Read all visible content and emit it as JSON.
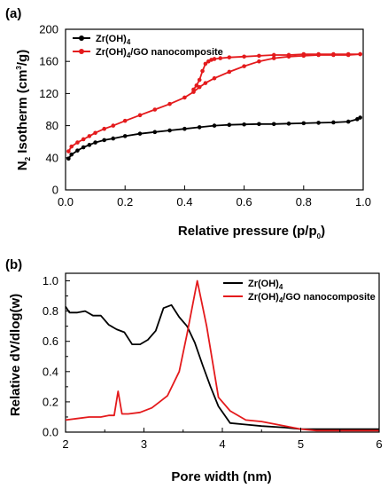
{
  "chart_data": [
    {
      "panel": "(a)",
      "type": "line",
      "xlabel": "Relative pressure (p/p",
      "xlabel_sub": "0",
      "xlabel_end": ")",
      "ylabel": "N",
      "ylabel_sub": "2",
      "ylabel_mid": " Isotherm (cm",
      "ylabel_sup": "3",
      "ylabel_end": "/g)",
      "xlim": [
        0,
        1.0
      ],
      "ylim": [
        0,
        200
      ],
      "xticks": [
        "0.0",
        "0.2",
        "0.4",
        "0.6",
        "0.8",
        "1.0"
      ],
      "xtick_values": [
        0,
        0.2,
        0.4,
        0.6,
        0.8,
        1.0
      ],
      "yticks": [
        "0",
        "40",
        "80",
        "120",
        "160",
        "200"
      ],
      "ytick_values": [
        0,
        40,
        80,
        120,
        160,
        200
      ],
      "grid": false,
      "legend_position": "top-left",
      "series": [
        {
          "name": "Zr(OH)",
          "name_sub": "4",
          "name_end": "",
          "color": "#000000",
          "x": [
            0.01,
            0.02,
            0.04,
            0.06,
            0.08,
            0.1,
            0.13,
            0.16,
            0.2,
            0.25,
            0.3,
            0.35,
            0.4,
            0.45,
            0.5,
            0.55,
            0.6,
            0.65,
            0.7,
            0.75,
            0.8,
            0.85,
            0.9,
            0.95,
            0.98,
            0.99
          ],
          "y": [
            39,
            44,
            49,
            53,
            56,
            59,
            62,
            64,
            67,
            70,
            72,
            74,
            76,
            78,
            80,
            81,
            81.5,
            82,
            82,
            82.5,
            83,
            83.5,
            84,
            85,
            88,
            90
          ]
        },
        {
          "name": "Zr(OH)",
          "name_sub": "4",
          "name_end": "/GO nanocomposite",
          "color": "#e41a1c",
          "x": [
            0.01,
            0.02,
            0.04,
            0.06,
            0.08,
            0.1,
            0.13,
            0.16,
            0.2,
            0.25,
            0.3,
            0.35,
            0.4,
            0.43,
            0.45,
            0.47,
            0.5,
            0.55,
            0.6,
            0.65,
            0.7,
            0.75,
            0.8,
            0.85,
            0.9,
            0.95,
            0.99
          ],
          "y": [
            48,
            54,
            59,
            63,
            67,
            71,
            76,
            80,
            86,
            93,
            100,
            107,
            115,
            122,
            128,
            133,
            139,
            147,
            154,
            160,
            164,
            166,
            167,
            168,
            168,
            168,
            169
          ],
          "desorption_x": [
            0.99,
            0.95,
            0.9,
            0.85,
            0.8,
            0.75,
            0.7,
            0.65,
            0.6,
            0.55,
            0.52,
            0.5,
            0.49,
            0.48,
            0.47,
            0.46,
            0.45,
            0.44,
            0.43
          ],
          "desorption_y": [
            169,
            169,
            169,
            169,
            169,
            168,
            168,
            167,
            166,
            165,
            164,
            163,
            162,
            160,
            157,
            148,
            137,
            130,
            125
          ]
        }
      ]
    },
    {
      "panel": "(b)",
      "type": "line",
      "xlabel": "Pore width (nm)",
      "ylabel": "Relative dV/dlog(w)",
      "xlim": [
        2,
        6
      ],
      "ylim": [
        0,
        1.05
      ],
      "xticks": [
        "2",
        "3",
        "4",
        "5",
        "6"
      ],
      "xtick_values": [
        2,
        3,
        4,
        5,
        6
      ],
      "yticks": [
        "0.0",
        "0.2",
        "0.4",
        "0.6",
        "0.8",
        "1.0"
      ],
      "ytick_values": [
        0,
        0.2,
        0.4,
        0.6,
        0.8,
        1.0
      ],
      "grid": false,
      "legend_position": "top-right",
      "series": [
        {
          "name": "Zr(OH)",
          "name_sub": "4",
          "name_end": "",
          "color": "#000000",
          "x": [
            2.0,
            2.05,
            2.15,
            2.25,
            2.35,
            2.45,
            2.55,
            2.65,
            2.75,
            2.85,
            2.95,
            3.05,
            3.15,
            3.25,
            3.35,
            3.45,
            3.55,
            3.65,
            3.75,
            3.85,
            3.95,
            4.1,
            4.3,
            4.5,
            4.8,
            5.0,
            5.3,
            5.6,
            6.0
          ],
          "y": [
            0.83,
            0.79,
            0.79,
            0.8,
            0.77,
            0.77,
            0.71,
            0.68,
            0.66,
            0.58,
            0.58,
            0.61,
            0.67,
            0.82,
            0.84,
            0.76,
            0.7,
            0.59,
            0.44,
            0.3,
            0.17,
            0.06,
            0.05,
            0.04,
            0.03,
            0.02,
            0.02,
            0.02,
            0.02
          ]
        },
        {
          "name": "Zr(OH)",
          "name_sub": "4",
          "name_end": "/GO nanocomposite",
          "color": "#e41a1c",
          "x": [
            2.0,
            2.15,
            2.3,
            2.45,
            2.55,
            2.62,
            2.67,
            2.72,
            2.8,
            2.95,
            3.1,
            3.2,
            3.3,
            3.45,
            3.55,
            3.68,
            3.8,
            3.95,
            4.1,
            4.3,
            4.5,
            4.7,
            5.0,
            5.2,
            5.5,
            6.0
          ],
          "y": [
            0.08,
            0.09,
            0.1,
            0.1,
            0.11,
            0.11,
            0.27,
            0.12,
            0.12,
            0.13,
            0.16,
            0.2,
            0.24,
            0.4,
            0.65,
            1.0,
            0.7,
            0.23,
            0.14,
            0.08,
            0.07,
            0.05,
            0.02,
            0.01,
            0.01,
            0.01
          ]
        }
      ]
    }
  ]
}
